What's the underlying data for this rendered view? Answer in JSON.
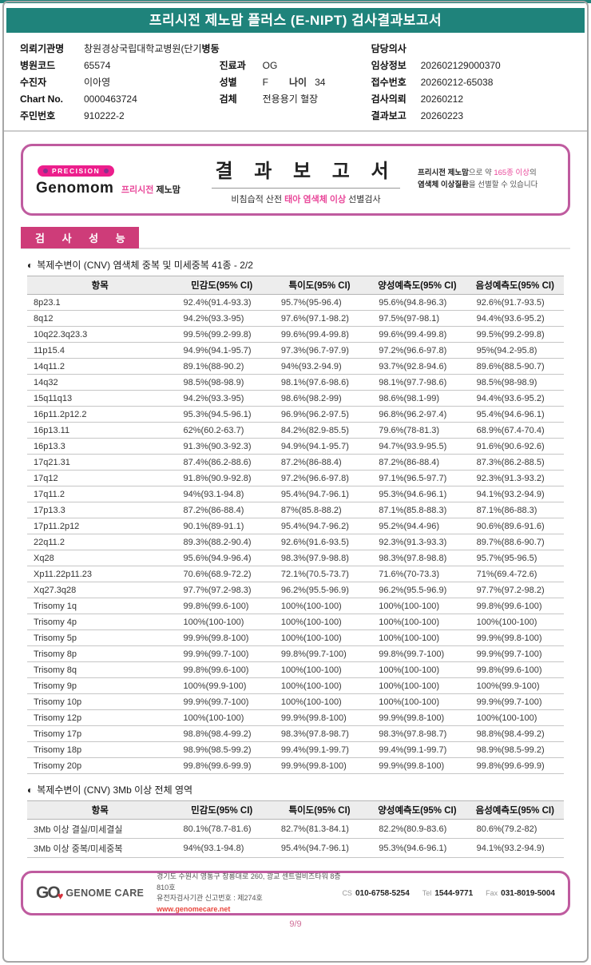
{
  "colors": {
    "teal_header": "#1f837b",
    "magenta_badge": "#ce3c79",
    "pink_box_border": "#bf5b9f",
    "pink_accent": "#e9489a",
    "precision_pill": "#ec1e8c",
    "red_link": "#e8453c"
  },
  "icons": {
    "half_circle_bullet": "◐",
    "heart": "♥"
  },
  "header": {
    "title": "프리시전 제노맘 플러스 (E-NIPT) 검사결과보고서"
  },
  "patient": {
    "rows_left": [
      {
        "label": "의뢰기관명",
        "value": "창원경상국립대학교병원(단기",
        "extra_label": "병동"
      },
      {
        "label": "병원코드",
        "value": "65574"
      },
      {
        "label": "수진자",
        "value": "이아영"
      },
      {
        "label": "Chart No.",
        "value": "0000463724"
      },
      {
        "label": "주민번호",
        "value": "910222-2"
      }
    ],
    "rows_mid": [
      {
        "label": "진료과",
        "value": "OG"
      },
      {
        "label": "성별",
        "value": "F",
        "label2": "나이",
        "value2": "34"
      },
      {
        "label": "검체",
        "value": "전용용기 혈장"
      }
    ],
    "rows_right": [
      {
        "label": "담당의사",
        "value": ""
      },
      {
        "label": "임상정보",
        "value": "202602129000370"
      },
      {
        "label": "접수번호",
        "value": "20260212-65038"
      },
      {
        "label": "검사의뢰",
        "value": "20260212"
      },
      {
        "label": "결과보고",
        "value": "20260223"
      }
    ]
  },
  "result_banner": {
    "precision_badge": "PRECISION",
    "brand_en": "Genomom",
    "brand_kr_pink": "프리시전",
    "brand_kr_dark": "제노맘",
    "title": "결 과 보 고 서",
    "subtitle_pre": "비침습적 산전 ",
    "subtitle_pink": "태아 염색체 이상",
    "subtitle_post": " 선별검사",
    "note_b1": "프리시전 제노맘",
    "note_t1": "으로 약 ",
    "note_pink": "165종 이상",
    "note_t2": "의",
    "note_b2": "염색체 이상질환",
    "note_t3": "을 선별할 수 있습니다"
  },
  "performance_section": {
    "badge": "검 사 성 능"
  },
  "table1": {
    "bullet": "◐",
    "title": "복제수변이 (CNV) 염색체 중복 및 미세중복 41종 - 2/2",
    "columns": [
      "항목",
      "민감도(95% CI)",
      "특이도(95% CI)",
      "양성예측도(95% CI)",
      "음성예측도(95% CI)"
    ],
    "rows": [
      [
        "8p23.1",
        "92.4%(91.4-93.3)",
        "95.7%(95-96.4)",
        "95.6%(94.8-96.3)",
        "92.6%(91.7-93.5)"
      ],
      [
        "8q12",
        "94.2%(93.3-95)",
        "97.6%(97.1-98.2)",
        "97.5%(97-98.1)",
        "94.4%(93.6-95.2)"
      ],
      [
        "10q22.3q23.3",
        "99.5%(99.2-99.8)",
        "99.6%(99.4-99.8)",
        "99.6%(99.4-99.8)",
        "99.5%(99.2-99.8)"
      ],
      [
        "11p15.4",
        "94.9%(94.1-95.7)",
        "97.3%(96.7-97.9)",
        "97.2%(96.6-97.8)",
        "95%(94.2-95.8)"
      ],
      [
        "14q11.2",
        "89.1%(88-90.2)",
        "94%(93.2-94.9)",
        "93.7%(92.8-94.6)",
        "89.6%(88.5-90.7)"
      ],
      [
        "14q32",
        "98.5%(98-98.9)",
        "98.1%(97.6-98.6)",
        "98.1%(97.7-98.6)",
        "98.5%(98-98.9)"
      ],
      [
        "15q11q13",
        "94.2%(93.3-95)",
        "98.6%(98.2-99)",
        "98.6%(98.1-99)",
        "94.4%(93.6-95.2)"
      ],
      [
        "16p11.2p12.2",
        "95.3%(94.5-96.1)",
        "96.9%(96.2-97.5)",
        "96.8%(96.2-97.4)",
        "95.4%(94.6-96.1)"
      ],
      [
        "16p13.11",
        "62%(60.2-63.7)",
        "84.2%(82.9-85.5)",
        "79.6%(78-81.3)",
        "68.9%(67.4-70.4)"
      ],
      [
        "16p13.3",
        "91.3%(90.3-92.3)",
        "94.9%(94.1-95.7)",
        "94.7%(93.9-95.5)",
        "91.6%(90.6-92.6)"
      ],
      [
        "17q21.31",
        "87.4%(86.2-88.6)",
        "87.2%(86-88.4)",
        "87.2%(86-88.4)",
        "87.3%(86.2-88.5)"
      ],
      [
        "17q12",
        "91.8%(90.9-92.8)",
        "97.2%(96.6-97.8)",
        "97.1%(96.5-97.7)",
        "92.3%(91.3-93.2)"
      ],
      [
        "17q11.2",
        "94%(93.1-94.8)",
        "95.4%(94.7-96.1)",
        "95.3%(94.6-96.1)",
        "94.1%(93.2-94.9)"
      ],
      [
        "17p13.3",
        "87.2%(86-88.4)",
        "87%(85.8-88.2)",
        "87.1%(85.8-88.3)",
        "87.1%(86-88.3)"
      ],
      [
        "17p11.2p12",
        "90.1%(89-91.1)",
        "95.4%(94.7-96.2)",
        "95.2%(94.4-96)",
        "90.6%(89.6-91.6)"
      ],
      [
        "22q11.2",
        "89.3%(88.2-90.4)",
        "92.6%(91.6-93.5)",
        "92.3%(91.3-93.3)",
        "89.7%(88.6-90.7)"
      ],
      [
        "Xq28",
        "95.6%(94.9-96.4)",
        "98.3%(97.9-98.8)",
        "98.3%(97.8-98.8)",
        "95.7%(95-96.5)"
      ],
      [
        "Xp11.22p11.23",
        "70.6%(68.9-72.2)",
        "72.1%(70.5-73.7)",
        "71.6%(70-73.3)",
        "71%(69.4-72.6)"
      ],
      [
        "Xq27.3q28",
        "97.7%(97.2-98.3)",
        "96.2%(95.5-96.9)",
        "96.2%(95.5-96.9)",
        "97.7%(97.2-98.2)"
      ],
      [
        "Trisomy 1q",
        "99.8%(99.6-100)",
        "100%(100-100)",
        "100%(100-100)",
        "99.8%(99.6-100)"
      ],
      [
        "Trisomy 4p",
        "100%(100-100)",
        "100%(100-100)",
        "100%(100-100)",
        "100%(100-100)"
      ],
      [
        "Trisomy 5p",
        "99.9%(99.8-100)",
        "100%(100-100)",
        "100%(100-100)",
        "99.9%(99.8-100)"
      ],
      [
        "Trisomy 8p",
        "99.9%(99.7-100)",
        "99.8%(99.7-100)",
        "99.8%(99.7-100)",
        "99.9%(99.7-100)"
      ],
      [
        "Trisomy 8q",
        "99.8%(99.6-100)",
        "100%(100-100)",
        "100%(100-100)",
        "99.8%(99.6-100)"
      ],
      [
        "Trisomy 9p",
        "100%(99.9-100)",
        "100%(100-100)",
        "100%(100-100)",
        "100%(99.9-100)"
      ],
      [
        "Trisomy 10p",
        "99.9%(99.7-100)",
        "100%(100-100)",
        "100%(100-100)",
        "99.9%(99.7-100)"
      ],
      [
        "Trisomy 12p",
        "100%(100-100)",
        "99.9%(99.8-100)",
        "99.9%(99.8-100)",
        "100%(100-100)"
      ],
      [
        "Trisomy 17p",
        "98.8%(98.4-99.2)",
        "98.3%(97.8-98.7)",
        "98.3%(97.8-98.7)",
        "98.8%(98.4-99.2)"
      ],
      [
        "Trisomy 18p",
        "98.9%(98.5-99.2)",
        "99.4%(99.1-99.7)",
        "99.4%(99.1-99.7)",
        "98.9%(98.5-99.2)"
      ],
      [
        "Trisomy 20p",
        "99.8%(99.6-99.9)",
        "99.9%(99.8-100)",
        "99.9%(99.8-100)",
        "99.8%(99.6-99.9)"
      ]
    ]
  },
  "table2": {
    "bullet": "◐",
    "title": "복제수변이 (CNV) 3Mb 이상 전체 영역",
    "columns": [
      "항목",
      "민감도(95% CI)",
      "특이도(95% CI)",
      "양성예측도(95% CI)",
      "음성예측도(95% CI)"
    ],
    "rows": [
      [
        "3Mb 이상 결실/미세결실",
        "80.1%(78.7-81.6)",
        "82.7%(81.3-84.1)",
        "82.2%(80.9-83.6)",
        "80.6%(79.2-82)"
      ],
      [
        "3Mb 이상 중복/미세중복",
        "94%(93.1-94.8)",
        "95.4%(94.7-96.1)",
        "95.3%(94.6-96.1)",
        "94.1%(93.2-94.9)"
      ]
    ]
  },
  "footer": {
    "company": "GENOME CARE",
    "logo_mark": "GO",
    "address": "경기도 수원시 영통구 창룡대로 260, 광교 센트럴비즈타워 8층 810호",
    "registration": "유전자검사기관 신고번호 : 제274호",
    "website": "www.genomecare.net",
    "cs_label": "CS",
    "cs": "010-6758-5254",
    "tel_label": "Tel",
    "tel": "1544-9771",
    "fax_label": "Fax",
    "fax": "031-8019-5004",
    "page": "9/9"
  }
}
